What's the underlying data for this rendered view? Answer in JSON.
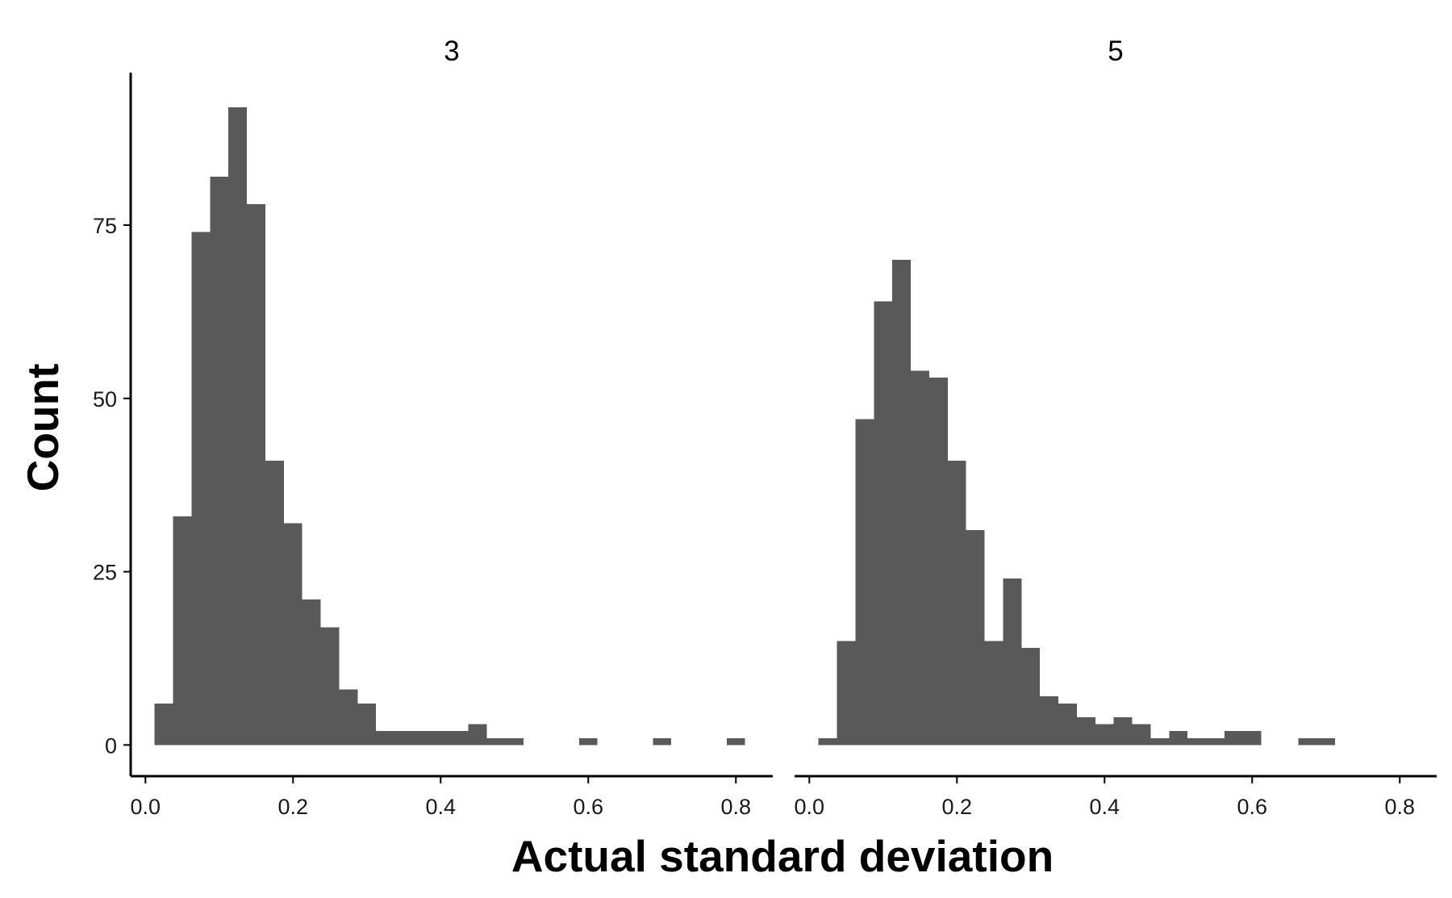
{
  "chart_data": {
    "type": "bar",
    "subtype": "faceted-histogram",
    "xlabel": "Actual standard deviation",
    "ylabel": "Count",
    "xlim": [
      -0.02,
      0.85
    ],
    "ylim": [
      -4.5,
      97
    ],
    "x_ticks": [
      0.0,
      0.2,
      0.4,
      0.6,
      0.8
    ],
    "x_tick_labels": [
      "0.0",
      "0.2",
      "0.4",
      "0.6",
      "0.8"
    ],
    "y_ticks": [
      0,
      25,
      50,
      75
    ],
    "y_tick_labels": [
      "0",
      "25",
      "50",
      "75"
    ],
    "bin_width": 0.025,
    "bar_color": "#595959",
    "grid": false,
    "legend": "none",
    "facets": [
      {
        "label": "3",
        "bins": [
          {
            "x": 0.025,
            "count": 6
          },
          {
            "x": 0.05,
            "count": 33
          },
          {
            "x": 0.075,
            "count": 74
          },
          {
            "x": 0.1,
            "count": 82
          },
          {
            "x": 0.125,
            "count": 92
          },
          {
            "x": 0.15,
            "count": 78
          },
          {
            "x": 0.175,
            "count": 41
          },
          {
            "x": 0.2,
            "count": 32
          },
          {
            "x": 0.225,
            "count": 21
          },
          {
            "x": 0.25,
            "count": 17
          },
          {
            "x": 0.275,
            "count": 8
          },
          {
            "x": 0.3,
            "count": 6
          },
          {
            "x": 0.325,
            "count": 2
          },
          {
            "x": 0.35,
            "count": 2
          },
          {
            "x": 0.375,
            "count": 2
          },
          {
            "x": 0.4,
            "count": 2
          },
          {
            "x": 0.425,
            "count": 2
          },
          {
            "x": 0.45,
            "count": 3
          },
          {
            "x": 0.475,
            "count": 1
          },
          {
            "x": 0.5,
            "count": 1
          },
          {
            "x": 0.6,
            "count": 1
          },
          {
            "x": 0.7,
            "count": 1
          },
          {
            "x": 0.8,
            "count": 1
          }
        ]
      },
      {
        "label": "5",
        "bins": [
          {
            "x": 0.025,
            "count": 1
          },
          {
            "x": 0.05,
            "count": 15
          },
          {
            "x": 0.075,
            "count": 47
          },
          {
            "x": 0.1,
            "count": 64
          },
          {
            "x": 0.125,
            "count": 70
          },
          {
            "x": 0.15,
            "count": 54
          },
          {
            "x": 0.175,
            "count": 53
          },
          {
            "x": 0.2,
            "count": 41
          },
          {
            "x": 0.225,
            "count": 31
          },
          {
            "x": 0.25,
            "count": 15
          },
          {
            "x": 0.275,
            "count": 24
          },
          {
            "x": 0.3,
            "count": 14
          },
          {
            "x": 0.325,
            "count": 7
          },
          {
            "x": 0.35,
            "count": 6
          },
          {
            "x": 0.375,
            "count": 4
          },
          {
            "x": 0.4,
            "count": 3
          },
          {
            "x": 0.425,
            "count": 4
          },
          {
            "x": 0.45,
            "count": 3
          },
          {
            "x": 0.475,
            "count": 1
          },
          {
            "x": 0.5,
            "count": 2
          },
          {
            "x": 0.525,
            "count": 1
          },
          {
            "x": 0.55,
            "count": 1
          },
          {
            "x": 0.575,
            "count": 2
          },
          {
            "x": 0.6,
            "count": 2
          },
          {
            "x": 0.675,
            "count": 1
          },
          {
            "x": 0.7,
            "count": 1
          }
        ]
      }
    ]
  }
}
